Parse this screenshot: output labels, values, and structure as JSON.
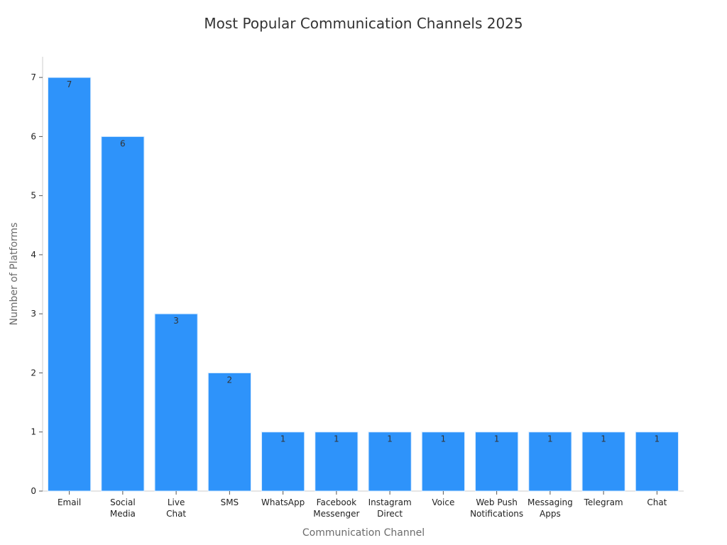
{
  "chart_data": {
    "type": "bar",
    "title": "Most Popular Communication Channels 2025",
    "xlabel": "Communication Channel",
    "ylabel": "Number of Platforms",
    "categories": [
      [
        "Email"
      ],
      [
        "Social",
        "Media"
      ],
      [
        "Live",
        "Chat"
      ],
      [
        "SMS"
      ],
      [
        "WhatsApp"
      ],
      [
        "Facebook",
        "Messenger"
      ],
      [
        "Instagram",
        "Direct"
      ],
      [
        "Voice"
      ],
      [
        "Web Push",
        "Notifications"
      ],
      [
        "Messaging",
        "Apps"
      ],
      [
        "Telegram"
      ],
      [
        "Chat"
      ]
    ],
    "values": [
      7,
      6,
      3,
      2,
      1,
      1,
      1,
      1,
      1,
      1,
      1,
      1
    ],
    "ylim": [
      0,
      7.35
    ],
    "yticks": [
      0,
      1,
      2,
      3,
      4,
      5,
      6,
      7
    ],
    "bar_color": "#2e93fa",
    "grid": false,
    "legend": "none"
  }
}
